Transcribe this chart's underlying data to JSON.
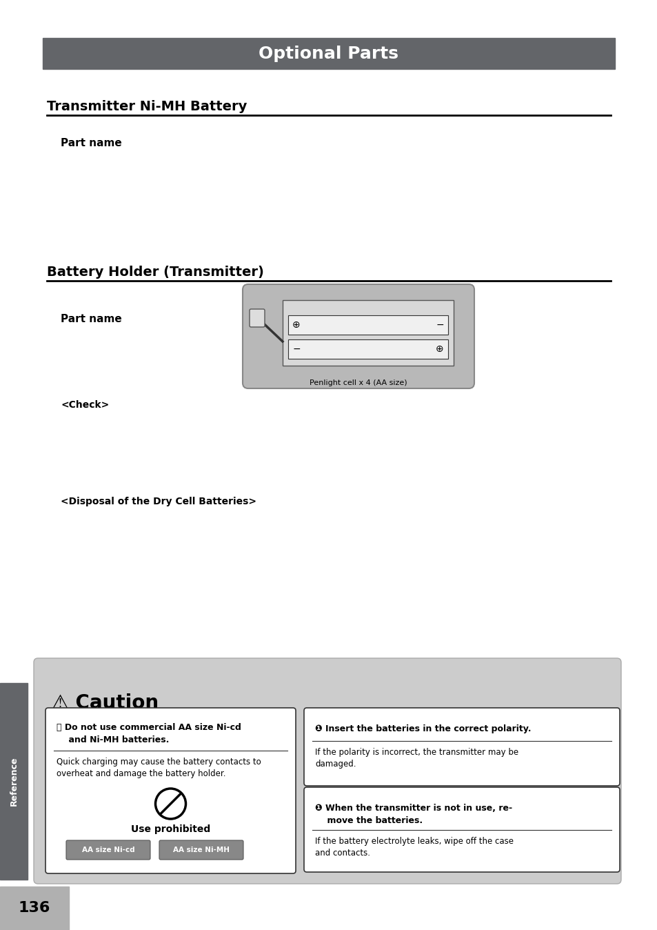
{
  "page_bg": "#ffffff",
  "header_bg": "#636569",
  "header_text": "Optional Parts",
  "header_text_color": "#ffffff",
  "section1_title": "Transmitter Ni-MH Battery",
  "section2_title": "Battery Holder (Transmitter)",
  "part_name_label": "Part name",
  "check_label": "<Check>",
  "disposal_label": "<Disposal of the Dry Cell Batteries>",
  "battery_holder_caption": "Penlight cell x 4 (AA size)",
  "caution_title": "⚠ Caution",
  "caution_left_title": "⃠ Do not use commercial AA size Ni-cd\n    and Ni-MH batteries.",
  "caution_left_body": "Quick charging may cause the battery contacts to\noverheat and damage the battery holder.",
  "caution_left_use": "Use prohibited",
  "caution_left_btn1": "AA size Ni-cd",
  "caution_left_btn2": "AA size Ni-MH",
  "caution_right1_title": "❶ Insert the batteries in the correct polarity.",
  "caution_right1_body": "If the polarity is incorrect, the transmitter may be\ndamaged.",
  "caution_right2_title": "❶ When the transmitter is not in use, re-\n    move the batteries.",
  "caution_right2_body": "If the battery electrolyte leaks, wipe off the case\nand contacts.",
  "sidebar_bg": "#636569",
  "sidebar_text": "Reference",
  "footer_bg": "#b0b0b0",
  "footer_text": "136"
}
